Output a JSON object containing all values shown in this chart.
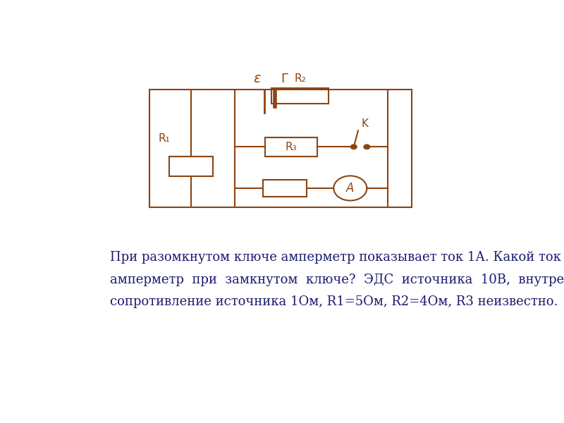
{
  "bg_color": "#ffffff",
  "line_color": "#8B4513",
  "text_color": "#1a1a6e",
  "epsilon_label": "ε",
  "gamma_label": "Г",
  "R1_label": "R₁",
  "R2_label": "R₂",
  "R3_label": "R₃",
  "K_label": "K",
  "A_label": "A",
  "paragraph_line1": "При разомкнутом ключе амперметр показывает ток 1А. Какой ток покажет",
  "paragraph_line2": "амперметр  при  замкнутом  ключе?  ЭДС  источника  10В,  внутреннее",
  "paragraph_line3": "сопротивление источника 1Ом, R1=5Ом, R2=4Ом, R3 неизвестно.",
  "font_size_text": 13
}
